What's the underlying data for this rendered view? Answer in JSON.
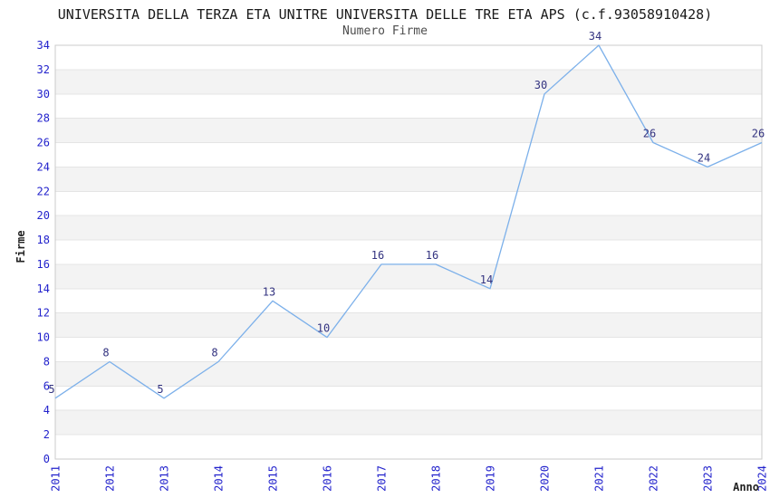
{
  "chart_data": {
    "type": "line",
    "title": "UNIVERSITA DELLA TERZA ETA UNITRE UNIVERSITA DELLE TRE ETA APS (c.f.93058910428)",
    "subtitle": "Numero Firme",
    "xlabel": "Anno",
    "ylabel": "Firme",
    "categories": [
      "2011",
      "2012",
      "2013",
      "2014",
      "2015",
      "2016",
      "2017",
      "2018",
      "2019",
      "2020",
      "2021",
      "2022",
      "2023",
      "2024"
    ],
    "values": [
      5,
      8,
      5,
      8,
      13,
      10,
      16,
      16,
      14,
      30,
      34,
      26,
      24,
      26
    ],
    "data_labels": [
      "5",
      "8",
      "5",
      "8",
      "13",
      "10",
      "16",
      "16",
      "14",
      "30",
      "34",
      "26",
      "24",
      "26"
    ],
    "ylim": [
      0,
      34
    ],
    "ytick_step": 2,
    "yticks": [
      0,
      2,
      4,
      6,
      8,
      10,
      12,
      14,
      16,
      18,
      20,
      22,
      24,
      26,
      28,
      30,
      32,
      34
    ],
    "grid": "horizontal",
    "banding": "alternating-2-unit-bands",
    "legend": "none",
    "marker": "none",
    "colors": {
      "line": "#7cb0ea",
      "tick_label": "#2222cc",
      "data_label": "#333380",
      "band": "#f3f3f3",
      "grid": "#e4e4e4",
      "border": "#cbcbcb",
      "title": "#1a1a1a",
      "subtitle": "#4d4d4d",
      "axis_title": "#222222",
      "background": "#ffffff"
    }
  }
}
